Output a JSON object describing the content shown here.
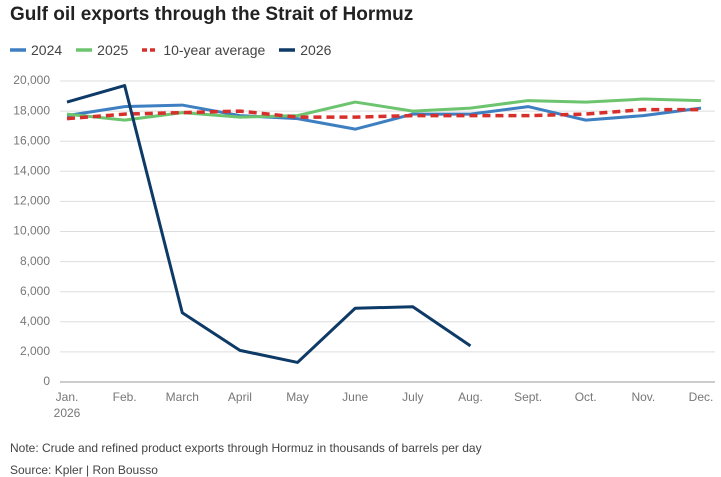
{
  "chart_data": {
    "type": "line",
    "title": "Gulf oil exports through the Strait of Hormuz",
    "categories": [
      "Jan. 2026",
      "Feb.",
      "March",
      "April",
      "May",
      "June",
      "July",
      "Aug.",
      "Sept.",
      "Oct.",
      "Nov.",
      "Dec."
    ],
    "series": [
      {
        "name": "2024",
        "color": "#3d7fc1",
        "style": "solid",
        "values": [
          17700,
          18300,
          18400,
          17700,
          17500,
          16800,
          17800,
          17800,
          18300,
          17400,
          17700,
          18200
        ]
      },
      {
        "name": "2025",
        "color": "#6cc46f",
        "style": "solid",
        "values": [
          17800,
          17400,
          17900,
          17600,
          17700,
          18600,
          18000,
          18200,
          18700,
          18600,
          18800,
          18700
        ]
      },
      {
        "name": "10-year average",
        "color": "#d7302c",
        "style": "dashed",
        "values": [
          17500,
          17800,
          17900,
          18000,
          17600,
          17600,
          17700,
          17700,
          17700,
          17800,
          18100,
          18100
        ]
      },
      {
        "name": "2026",
        "color": "#0d3a66",
        "style": "solid",
        "values": [
          18600,
          19700,
          4600,
          2100,
          1300,
          4900,
          5000,
          2400,
          null,
          null,
          null,
          null
        ]
      }
    ],
    "ylim": [
      0,
      20000
    ],
    "yticks": [
      0,
      {
        "value": 2000,
        "label": "2,000"
      },
      {
        "value": 4000,
        "label": "4,000"
      },
      {
        "value": 6000,
        "label": "6,000"
      },
      {
        "value": 8000,
        "label": "8,000"
      },
      {
        "value": 10000,
        "label": "10,000"
      },
      {
        "value": 12000,
        "label": "12,000"
      },
      {
        "value": 14000,
        "label": "14,000"
      },
      {
        "value": 16000,
        "label": "16,000"
      },
      {
        "value": 18000,
        "label": "18,000"
      },
      {
        "value": 20000,
        "label": "20,000"
      }
    ],
    "grid": true,
    "note": "Note: Crude and refined product exports through Hormuz in thousands of barrels per day",
    "source": "Source: Kpler | Ron Bousso"
  }
}
